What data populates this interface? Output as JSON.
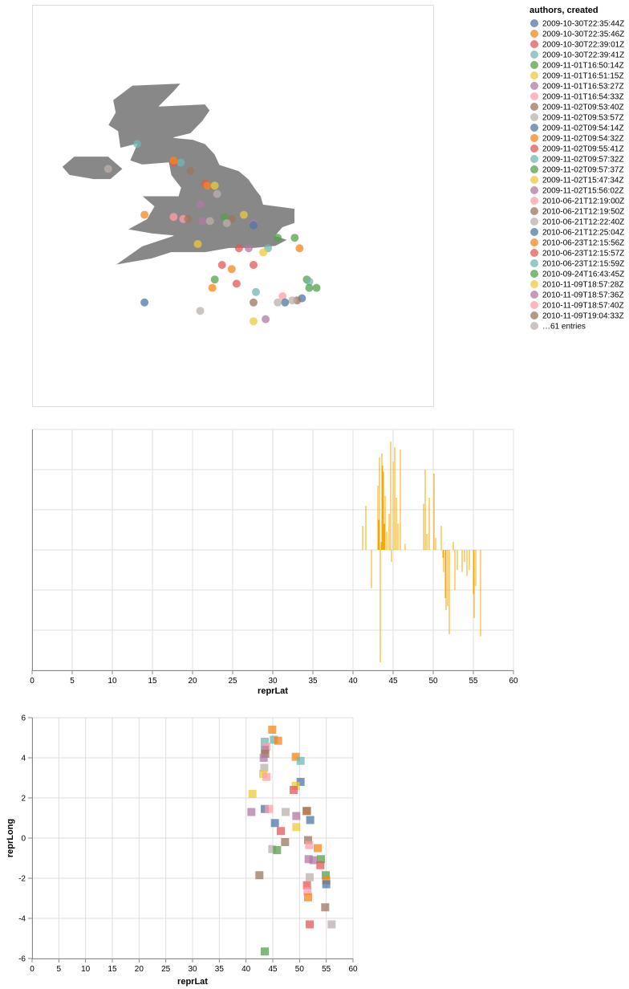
{
  "legend": {
    "title": "authors, created",
    "entries": [
      {
        "label": "2009-10-30T22:35:44Z",
        "color": "#4c78a8"
      },
      {
        "label": "2009-10-30T22:35:46Z",
        "color": "#f58518"
      },
      {
        "label": "2009-10-30T22:39:01Z",
        "color": "#e45756"
      },
      {
        "label": "2009-10-30T22:39:41Z",
        "color": "#72b7b2"
      },
      {
        "label": "2009-11-01T16:50:14Z",
        "color": "#54a24b"
      },
      {
        "label": "2009-11-01T16:51:15Z",
        "color": "#eeca3b"
      },
      {
        "label": "2009-11-01T16:53:27Z",
        "color": "#b279a2"
      },
      {
        "label": "2009-11-01T16:54:33Z",
        "color": "#ff9da6"
      },
      {
        "label": "2009-11-02T09:53:40Z",
        "color": "#9d755d"
      },
      {
        "label": "2009-11-02T09:53:57Z",
        "color": "#bab0ac"
      },
      {
        "label": "2009-11-02T09:54:14Z",
        "color": "#4c78a8"
      },
      {
        "label": "2009-11-02T09:54:32Z",
        "color": "#f58518"
      },
      {
        "label": "2009-11-02T09:55:41Z",
        "color": "#e45756"
      },
      {
        "label": "2009-11-02T09:57:32Z",
        "color": "#72b7b2"
      },
      {
        "label": "2009-11-02T09:57:37Z",
        "color": "#54a24b"
      },
      {
        "label": "2009-11-02T15:47:34Z",
        "color": "#eeca3b"
      },
      {
        "label": "2009-11-02T15:56:02Z",
        "color": "#b279a2"
      },
      {
        "label": "2010-06-21T12:19:00Z",
        "color": "#ff9da6"
      },
      {
        "label": "2010-06-21T12:19:50Z",
        "color": "#9d755d"
      },
      {
        "label": "2010-06-21T12:22:40Z",
        "color": "#bab0ac"
      },
      {
        "label": "2010-06-21T12:25:04Z",
        "color": "#4c78a8"
      },
      {
        "label": "2010-06-23T12:15:56Z",
        "color": "#f58518"
      },
      {
        "label": "2010-06-23T12:15:57Z",
        "color": "#e45756"
      },
      {
        "label": "2010-06-23T12:15:59Z",
        "color": "#72b7b2"
      },
      {
        "label": "2010-09-24T16:43:45Z",
        "color": "#54a24b"
      },
      {
        "label": "2010-11-09T18:57:28Z",
        "color": "#eeca3b"
      },
      {
        "label": "2010-11-09T18:57:36Z",
        "color": "#b279a2"
      },
      {
        "label": "2010-11-09T18:57:40Z",
        "color": "#ff9da6"
      },
      {
        "label": "2010-11-09T19:04:33Z",
        "color": "#9d755d"
      },
      {
        "label": "…61 entries",
        "color": "#bab0ac"
      }
    ]
  },
  "chart_data": [
    {
      "type": "scatter",
      "subtype": "map",
      "title": "",
      "map_fill": "#888888",
      "legend_placement": "right",
      "points": [
        {
          "lon": -2.3,
          "lat": 51.0,
          "color": "#eeca3b"
        },
        {
          "lon": -4.8,
          "lat": 55.8,
          "color": "#72b7b2"
        },
        {
          "lon": -6.0,
          "lat": 54.6,
          "color": "#bab0ac"
        },
        {
          "lon": -3.3,
          "lat": 54.9,
          "color": "#e45756"
        },
        {
          "lon": -3.0,
          "lat": 54.9,
          "color": "#72b7b2"
        },
        {
          "lon": -3.3,
          "lat": 55.0,
          "color": "#f58518"
        },
        {
          "lon": -2.6,
          "lat": 54.5,
          "color": "#9d755d"
        },
        {
          "lon": -2.0,
          "lat": 53.9,
          "color": "#e45756"
        },
        {
          "lon": -1.9,
          "lat": 53.8,
          "color": "#f58518"
        },
        {
          "lon": -1.6,
          "lat": 53.8,
          "color": "#eeca3b"
        },
        {
          "lon": -1.5,
          "lat": 53.4,
          "color": "#bab0ac"
        },
        {
          "lon": -2.2,
          "lat": 52.9,
          "color": "#b279a2"
        },
        {
          "lon": -4.5,
          "lat": 52.4,
          "color": "#f58518"
        },
        {
          "lon": -3.3,
          "lat": 52.3,
          "color": "#ff9da6"
        },
        {
          "lon": -2.9,
          "lat": 52.2,
          "color": "#ff9da6"
        },
        {
          "lon": -2.7,
          "lat": 52.2,
          "color": "#9d755d"
        },
        {
          "lon": -2.1,
          "lat": 52.1,
          "color": "#b279a2"
        },
        {
          "lon": -1.2,
          "lat": 52.3,
          "color": "#54a24b"
        },
        {
          "lon": -0.9,
          "lat": 52.2,
          "color": "#9d755d"
        },
        {
          "lon": -1.1,
          "lat": 52.0,
          "color": "#bab0ac"
        },
        {
          "lon": -1.8,
          "lat": 52.1,
          "color": "#bab0ac"
        },
        {
          "lon": -0.4,
          "lat": 52.4,
          "color": "#eeca3b"
        },
        {
          "lon": 0.0,
          "lat": 52.0,
          "color": "#b279a2"
        },
        {
          "lon": 0.0,
          "lat": 51.9,
          "color": "#4c78a8"
        },
        {
          "lon": 1.0,
          "lat": 51.3,
          "color": "#54a24b"
        },
        {
          "lon": 1.7,
          "lat": 51.3,
          "color": "#54a24b"
        },
        {
          "lon": -0.6,
          "lat": 50.8,
          "color": "#e45756"
        },
        {
          "lon": -0.2,
          "lat": 50.8,
          "color": "#b279a2"
        },
        {
          "lon": 0.6,
          "lat": 50.8,
          "color": "#72b7b2"
        },
        {
          "lon": 1.9,
          "lat": 50.8,
          "color": "#f58518"
        },
        {
          "lon": 0.4,
          "lat": 50.6,
          "color": "#eeca3b"
        },
        {
          "lon": -1.3,
          "lat": 50.0,
          "color": "#e45756"
        },
        {
          "lon": 0.0,
          "lat": 50.0,
          "color": "#e45756"
        },
        {
          "lon": -0.9,
          "lat": 49.8,
          "color": "#f58518"
        },
        {
          "lon": -1.6,
          "lat": 49.3,
          "color": "#54a24b"
        },
        {
          "lon": 2.2,
          "lat": 49.3,
          "color": "#54a24b"
        },
        {
          "lon": 2.3,
          "lat": 49.2,
          "color": "#72b7b2"
        },
        {
          "lon": -0.7,
          "lat": 49.1,
          "color": "#e45756"
        },
        {
          "lon": 2.3,
          "lat": 48.9,
          "color": "#54a24b"
        },
        {
          "lon": 2.6,
          "lat": 48.9,
          "color": "#54a24b"
        },
        {
          "lon": -1.7,
          "lat": 48.9,
          "color": "#f58518"
        },
        {
          "lon": 0.1,
          "lat": 48.7,
          "color": "#72b7b2"
        },
        {
          "lon": 1.2,
          "lat": 48.5,
          "color": "#ff9da6"
        },
        {
          "lon": 2.0,
          "lat": 48.4,
          "color": "#4c78a8"
        },
        {
          "lon": 1.8,
          "lat": 48.3,
          "color": "#9d755d"
        },
        {
          "lon": 1.6,
          "lat": 48.3,
          "color": "#bab0ac"
        },
        {
          "lon": 1.3,
          "lat": 48.2,
          "color": "#4c78a8"
        },
        {
          "lon": 1.0,
          "lat": 48.2,
          "color": "#bab0ac"
        },
        {
          "lon": 0.0,
          "lat": 48.2,
          "color": "#9d755d"
        },
        {
          "lon": -4.5,
          "lat": 48.2,
          "color": "#4c78a8"
        },
        {
          "lon": -2.2,
          "lat": 47.8,
          "color": "#bab0ac"
        },
        {
          "lon": 0.5,
          "lat": 47.4,
          "color": "#b279a2"
        },
        {
          "lon": 0.0,
          "lat": 47.3,
          "color": "#eeca3b"
        }
      ]
    },
    {
      "type": "bar",
      "xlabel": "reprLat",
      "ylabel": "",
      "xlim": [
        0,
        60
      ],
      "xticks": [
        0,
        5,
        10,
        15,
        20,
        25,
        30,
        35,
        40,
        45,
        50,
        55,
        60
      ],
      "ylim": [
        -6,
        6
      ],
      "grid": true,
      "bar_color": "#f5a800",
      "x": [
        41.2,
        41.6,
        42.3,
        43.1,
        43.2,
        43.3,
        43.4,
        43.5,
        43.6,
        43.7,
        43.8,
        43.9,
        44.0,
        44.2,
        44.5,
        44.7,
        44.8,
        45.0,
        45.2,
        45.4,
        45.6,
        45.9,
        46.5,
        48.8,
        49.0,
        49.2,
        49.5,
        50.1,
        50.3,
        51.0,
        51.2,
        51.3,
        51.5,
        51.6,
        51.8,
        52.0,
        52.5,
        52.7,
        53.0,
        53.6,
        53.9,
        54.2,
        54.5,
        55.0,
        55.1,
        55.3,
        55.9
      ],
      "y": [
        1.2,
        2.2,
        -1.9,
        3.2,
        1.5,
        4.6,
        -5.6,
        0.4,
        4.8,
        4.2,
        3.9,
        1.3,
        2.7,
        0.9,
        1.8,
        5.4,
        -0.6,
        4.4,
        5.1,
        2.6,
        1.3,
        5.0,
        0.3,
        2.3,
        4.0,
        0.8,
        2.6,
        3.8,
        0.6,
        1.2,
        -0.4,
        -1.1,
        -2.4,
        -3.0,
        -2.8,
        -4.2,
        0.4,
        -2.0,
        -1.0,
        -1.1,
        -0.6,
        -1.3,
        -1.0,
        -2.2,
        -3.4,
        -1.8,
        -4.3
      ]
    },
    {
      "type": "scatter",
      "marker": "square",
      "xlabel": "reprLat",
      "ylabel": "reprLong",
      "xlim": [
        0,
        60
      ],
      "ylim": [
        -6,
        6
      ],
      "xticks": [
        0,
        5,
        10,
        15,
        20,
        25,
        30,
        35,
        40,
        45,
        50,
        55,
        60
      ],
      "yticks": [
        -6,
        -4,
        -2,
        0,
        2,
        4,
        6
      ],
      "grid": true,
      "points": [
        {
          "x": 44.9,
          "y": 5.4,
          "color": "#f58518"
        },
        {
          "x": 43.5,
          "y": 4.8,
          "color": "#72b7b2"
        },
        {
          "x": 45.2,
          "y": 4.9,
          "color": "#72b7b2"
        },
        {
          "x": 46.0,
          "y": 4.85,
          "color": "#f58518"
        },
        {
          "x": 43.8,
          "y": 4.55,
          "color": "#ff9da6"
        },
        {
          "x": 43.5,
          "y": 4.4,
          "color": "#b279a2"
        },
        {
          "x": 43.6,
          "y": 4.2,
          "color": "#9d755d"
        },
        {
          "x": 43.3,
          "y": 4.0,
          "color": "#b279a2"
        },
        {
          "x": 49.3,
          "y": 4.05,
          "color": "#f58518"
        },
        {
          "x": 50.2,
          "y": 3.85,
          "color": "#72b7b2"
        },
        {
          "x": 43.4,
          "y": 3.5,
          "color": "#bab0ac"
        },
        {
          "x": 43.2,
          "y": 3.2,
          "color": "#eeca3b"
        },
        {
          "x": 43.8,
          "y": 3.05,
          "color": "#ff9da6"
        },
        {
          "x": 50.2,
          "y": 2.8,
          "color": "#4c78a8"
        },
        {
          "x": 49.3,
          "y": 2.6,
          "color": "#eeca3b"
        },
        {
          "x": 48.9,
          "y": 2.4,
          "color": "#e45756"
        },
        {
          "x": 41.2,
          "y": 2.2,
          "color": "#eeca3b"
        },
        {
          "x": 43.5,
          "y": 1.45,
          "color": "#4c78a8"
        },
        {
          "x": 44.3,
          "y": 1.45,
          "color": "#ff9da6"
        },
        {
          "x": 47.4,
          "y": 1.3,
          "color": "#bab0ac"
        },
        {
          "x": 51.3,
          "y": 1.35,
          "color": "#f58518"
        },
        {
          "x": 51.4,
          "y": 1.35,
          "color": "#9d755d"
        },
        {
          "x": 41.0,
          "y": 1.3,
          "color": "#b279a2"
        },
        {
          "x": 49.4,
          "y": 1.1,
          "color": "#b279a2"
        },
        {
          "x": 52.0,
          "y": 0.9,
          "color": "#4c78a8"
        },
        {
          "x": 45.4,
          "y": 0.75,
          "color": "#4c78a8"
        },
        {
          "x": 49.4,
          "y": 0.55,
          "color": "#eeca3b"
        },
        {
          "x": 46.5,
          "y": 0.35,
          "color": "#e45756"
        },
        {
          "x": 51.6,
          "y": -0.1,
          "color": "#9d755d"
        },
        {
          "x": 47.3,
          "y": -0.2,
          "color": "#9d755d"
        },
        {
          "x": 51.8,
          "y": -0.35,
          "color": "#ff9da6"
        },
        {
          "x": 53.4,
          "y": -0.5,
          "color": "#f58518"
        },
        {
          "x": 44.9,
          "y": -0.55,
          "color": "#bab0ac"
        },
        {
          "x": 45.8,
          "y": -0.6,
          "color": "#54a24b"
        },
        {
          "x": 51.7,
          "y": -1.05,
          "color": "#b279a2"
        },
        {
          "x": 52.6,
          "y": -1.1,
          "color": "#b279a2"
        },
        {
          "x": 54.0,
          "y": -1.05,
          "color": "#54a24b"
        },
        {
          "x": 53.9,
          "y": -1.35,
          "color": "#e45756"
        },
        {
          "x": 42.5,
          "y": -1.85,
          "color": "#9d755d"
        },
        {
          "x": 54.9,
          "y": -1.85,
          "color": "#54a24b"
        },
        {
          "x": 51.9,
          "y": -1.95,
          "color": "#bab0ac"
        },
        {
          "x": 55.0,
          "y": -2.1,
          "color": "#f58518"
        },
        {
          "x": 55.0,
          "y": -2.3,
          "color": "#4c78a8"
        },
        {
          "x": 51.4,
          "y": -2.35,
          "color": "#e45756"
        },
        {
          "x": 51.5,
          "y": -2.65,
          "color": "#ff9da6"
        },
        {
          "x": 51.6,
          "y": -2.95,
          "color": "#f58518"
        },
        {
          "x": 54.8,
          "y": -3.45,
          "color": "#9d755d"
        },
        {
          "x": 51.9,
          "y": -4.3,
          "color": "#e45756"
        },
        {
          "x": 56.0,
          "y": -4.3,
          "color": "#bab0ac"
        },
        {
          "x": 43.5,
          "y": -5.65,
          "color": "#54a24b"
        }
      ]
    }
  ]
}
